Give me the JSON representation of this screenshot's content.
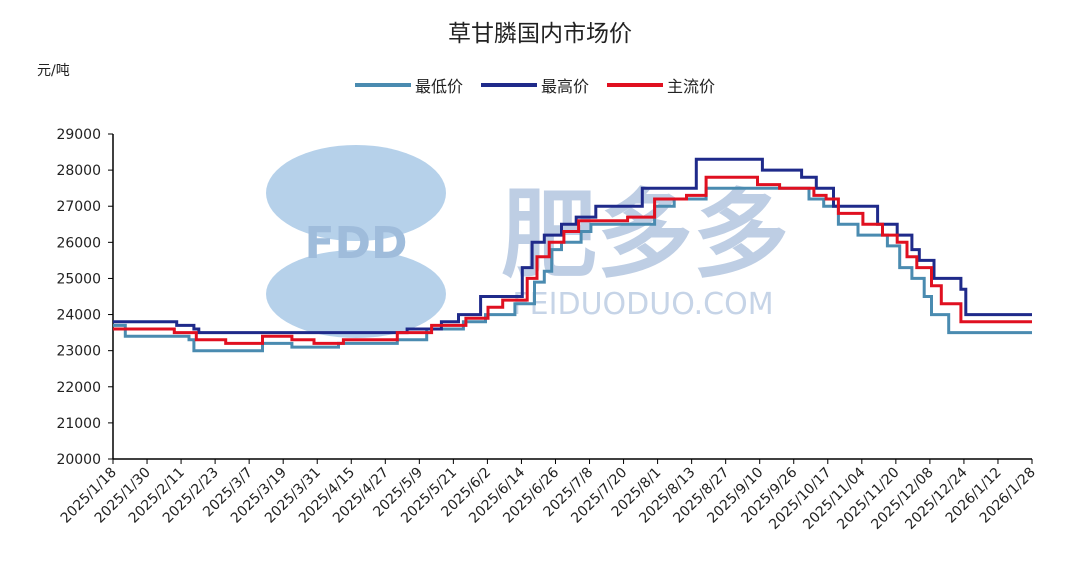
{
  "chart_data": {
    "type": "line",
    "title": "草甘膦国内市场价",
    "ylabel": "元/吨",
    "ylim": [
      20000,
      29000
    ],
    "yticks": [
      20000,
      21000,
      22000,
      23000,
      24000,
      25000,
      26000,
      27000,
      28000,
      29000
    ],
    "xlim": [
      "2025-01-18",
      "2026-01-28"
    ],
    "x_tick_labels": [
      "2025/1/18",
      "2025/1/30",
      "2025/2/11",
      "2025/2/23",
      "2025/3/7",
      "2025/3/19",
      "2025/3/31",
      "2025/4/15",
      "2025/4/27",
      "2025/5/9",
      "2025/5/21",
      "2025/6/2",
      "2025/6/14",
      "2025/6/26",
      "2025/7/8",
      "2025/7/20",
      "2025/8/1",
      "2025/8/13",
      "2025/8/27",
      "2025/9/10",
      "2025/9/26",
      "2025/10/17",
      "2025/11/04",
      "2025/11/20",
      "2025/12/08",
      "2025/12/24",
      "2026/1/12",
      "2026/1/28"
    ],
    "legend_position": "top",
    "series": [
      {
        "name": "最低价",
        "color": "#4a8bb0",
        "points": [
          [
            "2025-01-18",
            23700
          ],
          [
            "2025-01-23",
            23700
          ],
          [
            "2025-01-23",
            23400
          ],
          [
            "2025-02-10",
            23400
          ],
          [
            "2025-02-10",
            23400
          ],
          [
            "2025-02-18",
            23400
          ],
          [
            "2025-02-18",
            23300
          ],
          [
            "2025-02-20",
            23300
          ],
          [
            "2025-02-20",
            23000
          ],
          [
            "2025-03-20",
            23000
          ],
          [
            "2025-03-20",
            23200
          ],
          [
            "2025-04-01",
            23200
          ],
          [
            "2025-04-01",
            23100
          ],
          [
            "2025-04-20",
            23100
          ],
          [
            "2025-04-20",
            23200
          ],
          [
            "2025-05-14",
            23200
          ],
          [
            "2025-05-14",
            23300
          ],
          [
            "2025-05-26",
            23300
          ],
          [
            "2025-05-26",
            23600
          ],
          [
            "2025-06-10",
            23600
          ],
          [
            "2025-06-10",
            23800
          ],
          [
            "2025-06-19",
            23800
          ],
          [
            "2025-06-19",
            24000
          ],
          [
            "2025-07-01",
            24000
          ],
          [
            "2025-07-01",
            24300
          ],
          [
            "2025-07-09",
            24300
          ],
          [
            "2025-07-09",
            24900
          ],
          [
            "2025-07-13",
            24900
          ],
          [
            "2025-07-13",
            25200
          ],
          [
            "2025-07-16",
            25200
          ],
          [
            "2025-07-16",
            25800
          ],
          [
            "2025-07-20",
            25800
          ],
          [
            "2025-07-20",
            26000
          ],
          [
            "2025-07-28",
            26000
          ],
          [
            "2025-07-28",
            26300
          ],
          [
            "2025-08-01",
            26300
          ],
          [
            "2025-08-01",
            26500
          ],
          [
            "2025-08-27",
            26500
          ],
          [
            "2025-08-27",
            27000
          ],
          [
            "2025-09-04",
            27000
          ],
          [
            "2025-09-04",
            27200
          ],
          [
            "2025-09-17",
            27200
          ],
          [
            "2025-09-17",
            27500
          ],
          [
            "2025-10-29",
            27500
          ],
          [
            "2025-10-29",
            27200
          ],
          [
            "2025-11-04",
            27200
          ],
          [
            "2025-11-04",
            27000
          ],
          [
            "2025-11-10",
            27000
          ],
          [
            "2025-11-10",
            26500
          ],
          [
            "2025-11-18",
            26500
          ],
          [
            "2025-11-18",
            26200
          ],
          [
            "2025-11-30",
            26200
          ],
          [
            "2025-11-30",
            25900
          ],
          [
            "2025-12-05",
            25900
          ],
          [
            "2025-12-05",
            25300
          ],
          [
            "2025-12-10",
            25300
          ],
          [
            "2025-12-10",
            25000
          ],
          [
            "2025-12-15",
            25000
          ],
          [
            "2025-12-15",
            24500
          ],
          [
            "2025-12-18",
            24500
          ],
          [
            "2025-12-18",
            24000
          ],
          [
            "2025-12-25",
            24000
          ],
          [
            "2025-12-25",
            23500
          ],
          [
            "2026-01-28",
            23500
          ]
        ]
      },
      {
        "name": "最高价",
        "color": "#1f2a8a",
        "points": [
          [
            "2025-01-18",
            23800
          ],
          [
            "2025-02-13",
            23800
          ],
          [
            "2025-02-13",
            23700
          ],
          [
            "2025-02-20",
            23700
          ],
          [
            "2025-02-20",
            23600
          ],
          [
            "2025-02-22",
            23600
          ],
          [
            "2025-02-22",
            23500
          ],
          [
            "2025-05-18",
            23500
          ],
          [
            "2025-05-18",
            23600
          ],
          [
            "2025-06-01",
            23600
          ],
          [
            "2025-06-01",
            23800
          ],
          [
            "2025-06-08",
            23800
          ],
          [
            "2025-06-08",
            24000
          ],
          [
            "2025-06-17",
            24000
          ],
          [
            "2025-06-17",
            24500
          ],
          [
            "2025-06-26",
            24500
          ],
          [
            "2025-06-26",
            24500
          ],
          [
            "2025-07-04",
            24500
          ],
          [
            "2025-07-04",
            25300
          ],
          [
            "2025-07-08",
            25300
          ],
          [
            "2025-07-08",
            26000
          ],
          [
            "2025-07-13",
            26000
          ],
          [
            "2025-07-13",
            26200
          ],
          [
            "2025-07-20",
            26200
          ],
          [
            "2025-07-20",
            26500
          ],
          [
            "2025-07-26",
            26500
          ],
          [
            "2025-07-26",
            26700
          ],
          [
            "2025-08-03",
            26700
          ],
          [
            "2025-08-03",
            27000
          ],
          [
            "2025-08-22",
            27000
          ],
          [
            "2025-08-22",
            27500
          ],
          [
            "2025-09-13",
            27500
          ],
          [
            "2025-09-13",
            28300
          ],
          [
            "2025-10-10",
            28300
          ],
          [
            "2025-10-10",
            28000
          ],
          [
            "2025-10-26",
            28000
          ],
          [
            "2025-10-26",
            27800
          ],
          [
            "2025-11-01",
            27800
          ],
          [
            "2025-11-01",
            27500
          ],
          [
            "2025-11-08",
            27500
          ],
          [
            "2025-11-08",
            27000
          ],
          [
            "2025-11-26",
            27000
          ],
          [
            "2025-11-26",
            26500
          ],
          [
            "2025-12-04",
            26500
          ],
          [
            "2025-12-04",
            26200
          ],
          [
            "2025-12-10",
            26200
          ],
          [
            "2025-12-10",
            25800
          ],
          [
            "2025-12-13",
            25800
          ],
          [
            "2025-12-13",
            25500
          ],
          [
            "2025-12-19",
            25500
          ],
          [
            "2025-12-19",
            25000
          ],
          [
            "2025-12-30",
            25000
          ],
          [
            "2025-12-30",
            24700
          ],
          [
            "2026-01-01",
            24700
          ],
          [
            "2026-01-01",
            24000
          ],
          [
            "2026-01-28",
            24000
          ]
        ]
      },
      {
        "name": "主流价",
        "color": "#e01020",
        "points": [
          [
            "2025-01-18",
            23600
          ],
          [
            "2025-02-12",
            23600
          ],
          [
            "2025-02-12",
            23500
          ],
          [
            "2025-02-21",
            23500
          ],
          [
            "2025-02-21",
            23300
          ],
          [
            "2025-03-05",
            23300
          ],
          [
            "2025-03-05",
            23200
          ],
          [
            "2025-03-20",
            23200
          ],
          [
            "2025-03-20",
            23400
          ],
          [
            "2025-04-01",
            23400
          ],
          [
            "2025-04-01",
            23300
          ],
          [
            "2025-04-10",
            23300
          ],
          [
            "2025-04-10",
            23200
          ],
          [
            "2025-04-22",
            23200
          ],
          [
            "2025-04-22",
            23300
          ],
          [
            "2025-05-14",
            23300
          ],
          [
            "2025-05-14",
            23500
          ],
          [
            "2025-05-28",
            23500
          ],
          [
            "2025-05-28",
            23700
          ],
          [
            "2025-06-11",
            23700
          ],
          [
            "2025-06-11",
            23900
          ],
          [
            "2025-06-20",
            23900
          ],
          [
            "2025-06-20",
            24200
          ],
          [
            "2025-06-26",
            24200
          ],
          [
            "2025-06-26",
            24400
          ],
          [
            "2025-07-06",
            24400
          ],
          [
            "2025-07-06",
            25000
          ],
          [
            "2025-07-10",
            25000
          ],
          [
            "2025-07-10",
            25600
          ],
          [
            "2025-07-15",
            25600
          ],
          [
            "2025-07-15",
            26000
          ],
          [
            "2025-07-21",
            26000
          ],
          [
            "2025-07-21",
            26300
          ],
          [
            "2025-07-27",
            26300
          ],
          [
            "2025-07-27",
            26600
          ],
          [
            "2025-08-16",
            26600
          ],
          [
            "2025-08-16",
            26700
          ],
          [
            "2025-08-27",
            26700
          ],
          [
            "2025-08-27",
            27200
          ],
          [
            "2025-09-09",
            27200
          ],
          [
            "2025-09-09",
            27300
          ],
          [
            "2025-09-17",
            27300
          ],
          [
            "2025-09-17",
            27800
          ],
          [
            "2025-10-08",
            27800
          ],
          [
            "2025-10-08",
            27600
          ],
          [
            "2025-10-17",
            27600
          ],
          [
            "2025-10-17",
            27500
          ],
          [
            "2025-10-31",
            27500
          ],
          [
            "2025-10-31",
            27300
          ],
          [
            "2025-11-05",
            27300
          ],
          [
            "2025-11-05",
            27200
          ],
          [
            "2025-11-10",
            27200
          ],
          [
            "2025-11-10",
            26800
          ],
          [
            "2025-11-20",
            26800
          ],
          [
            "2025-11-20",
            26500
          ],
          [
            "2025-11-28",
            26500
          ],
          [
            "2025-11-28",
            26200
          ],
          [
            "2025-12-04",
            26200
          ],
          [
            "2025-12-04",
            26000
          ],
          [
            "2025-12-08",
            26000
          ],
          [
            "2025-12-08",
            25600
          ],
          [
            "2025-12-12",
            25600
          ],
          [
            "2025-12-12",
            25300
          ],
          [
            "2025-12-18",
            25300
          ],
          [
            "2025-12-18",
            24800
          ],
          [
            "2025-12-22",
            24800
          ],
          [
            "2025-12-22",
            24300
          ],
          [
            "2025-12-30",
            24300
          ],
          [
            "2025-12-30",
            23800
          ],
          [
            "2026-01-28",
            23800
          ]
        ]
      }
    ]
  },
  "watermark": {
    "badge_text": "FDD",
    "brand_cn": "肥多多",
    "brand_url": "FEIDUODUO.COM",
    "badge_color": "#8fb6dd",
    "text_color": "#a9bedb"
  }
}
